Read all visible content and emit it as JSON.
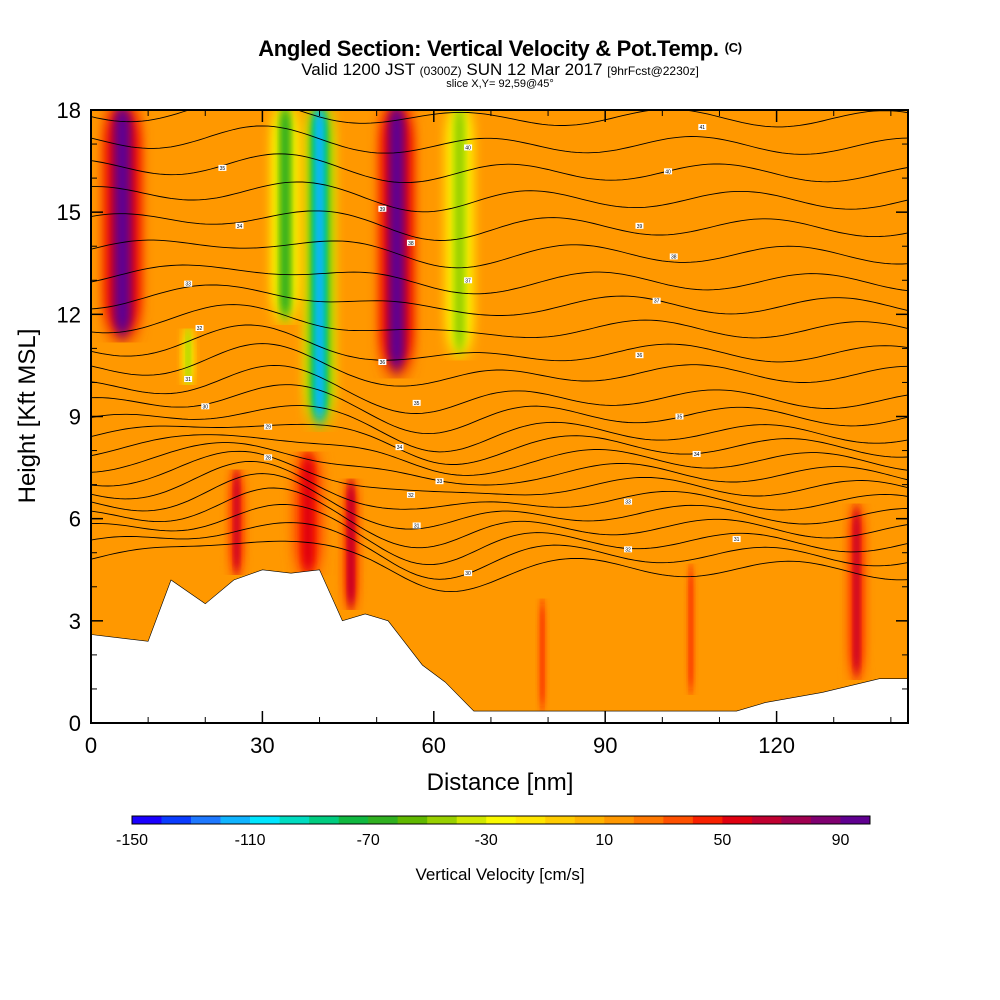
{
  "header": {
    "title": "Angled Section: Vertical Velocity & Pot.Temp.",
    "title_unit": "(C)",
    "valid_prefix": "Valid 1200 JST",
    "valid_utc": "(0300Z)",
    "valid_date": "SUN 12 Mar 2017",
    "forecast": "[9hrFcst@2230z]",
    "slice": "slice X,Y= 92,59@45°"
  },
  "chart_data": {
    "type": "heatmap",
    "xlabel": "Distance [nm]",
    "ylabel": "Height [Kft MSL]",
    "xlim": [
      0,
      143
    ],
    "ylim": [
      0,
      18
    ],
    "x_ticks": [
      0,
      30,
      60,
      90,
      120
    ],
    "y_ticks": [
      0,
      3,
      6,
      9,
      12,
      15,
      18
    ],
    "x_tick_labels": [
      "0",
      "30",
      "60",
      "90",
      "120"
    ],
    "y_tick_labels": [
      "0",
      "3",
      "6",
      "9",
      "12",
      "15",
      "18"
    ],
    "background_level_cm_s": 10,
    "updraft_columns": [
      {
        "x": 5.5,
        "width": 2.2,
        "zmin": 11.5,
        "zmax": 18,
        "peak": 90
      },
      {
        "x": 25.5,
        "width": 0.9,
        "zmin": 4.5,
        "zmax": 7.3,
        "peak": 60
      },
      {
        "x": 38,
        "width": 1.8,
        "zmin": 4.5,
        "zmax": 7.8,
        "peak": 55
      },
      {
        "x": 45.5,
        "width": 0.9,
        "zmin": 3.5,
        "zmax": 7.0,
        "peak": 65
      },
      {
        "x": 53.5,
        "width": 2.0,
        "zmin": 10.5,
        "zmax": 18,
        "peak": 95
      },
      {
        "x": 79,
        "width": 0.5,
        "zmin": 0.5,
        "zmax": 3.5,
        "peak": 40
      },
      {
        "x": 105,
        "width": 0.5,
        "zmin": 1.0,
        "zmax": 4.5,
        "peak": 40
      },
      {
        "x": 134,
        "width": 1.0,
        "zmin": 1.5,
        "zmax": 6.2,
        "peak": 60
      }
    ],
    "downdraft_columns": [
      {
        "x": 40,
        "width": 1.6,
        "zmin": 9.0,
        "zmax": 18,
        "peak": -120
      },
      {
        "x": 34,
        "width": 1.6,
        "zmin": 12,
        "zmax": 18,
        "peak": -65
      },
      {
        "x": 64.5,
        "width": 1.6,
        "zmin": 11,
        "zmax": 18,
        "peak": -45
      },
      {
        "x": 17,
        "width": 0.6,
        "zmin": 10,
        "zmax": 11.5,
        "peak": -50
      }
    ],
    "terrain_ridge_kft": [
      [
        0,
        2.6
      ],
      [
        10,
        2.4
      ],
      [
        14,
        4.2
      ],
      [
        20,
        3.5
      ],
      [
        25,
        4.2
      ],
      [
        30,
        4.5
      ],
      [
        35,
        4.4
      ],
      [
        40,
        4.5
      ],
      [
        44,
        3.0
      ],
      [
        48,
        3.2
      ],
      [
        52,
        3.0
      ],
      [
        58,
        1.7
      ],
      [
        62,
        1.2
      ],
      [
        67,
        0.35
      ],
      [
        90,
        0.35
      ],
      [
        113,
        0.35
      ],
      [
        118,
        0.6
      ],
      [
        128,
        0.9
      ],
      [
        138,
        1.3
      ],
      [
        143,
        1.3
      ]
    ],
    "theta_contour_labels": [
      {
        "x": 23,
        "z": 16.3,
        "text": "35"
      },
      {
        "x": 26,
        "z": 14.6,
        "text": "34"
      },
      {
        "x": 17,
        "z": 12.9,
        "text": "33"
      },
      {
        "x": 19,
        "z": 11.6,
        "text": "32"
      },
      {
        "x": 17,
        "z": 10.1,
        "text": "31"
      },
      {
        "x": 20,
        "z": 9.3,
        "text": "30"
      },
      {
        "x": 31,
        "z": 8.7,
        "text": "29"
      },
      {
        "x": 31,
        "z": 7.8,
        "text": "28"
      },
      {
        "x": 66,
        "z": 16.9,
        "text": "40"
      },
      {
        "x": 51,
        "z": 15.1,
        "text": "39"
      },
      {
        "x": 56,
        "z": 14.1,
        "text": "38"
      },
      {
        "x": 66,
        "z": 13.0,
        "text": "37"
      },
      {
        "x": 51,
        "z": 10.6,
        "text": "36"
      },
      {
        "x": 57,
        "z": 9.4,
        "text": "35"
      },
      {
        "x": 54,
        "z": 8.1,
        "text": "34"
      },
      {
        "x": 61,
        "z": 7.1,
        "text": "33"
      },
      {
        "x": 56,
        "z": 6.7,
        "text": "32"
      },
      {
        "x": 57,
        "z": 5.8,
        "text": "31"
      },
      {
        "x": 66,
        "z": 4.4,
        "text": "30"
      },
      {
        "x": 107,
        "z": 17.5,
        "text": "41"
      },
      {
        "x": 101,
        "z": 16.2,
        "text": "40"
      },
      {
        "x": 96,
        "z": 14.6,
        "text": "39"
      },
      {
        "x": 102,
        "z": 13.7,
        "text": "38"
      },
      {
        "x": 99,
        "z": 12.4,
        "text": "37"
      },
      {
        "x": 96,
        "z": 10.8,
        "text": "36"
      },
      {
        "x": 103,
        "z": 9.0,
        "text": "35"
      },
      {
        "x": 106,
        "z": 7.9,
        "text": "34"
      },
      {
        "x": 94,
        "z": 6.5,
        "text": "33"
      },
      {
        "x": 94,
        "z": 5.1,
        "text": "32"
      },
      {
        "x": 113,
        "z": 5.4,
        "text": "31"
      }
    ]
  },
  "colorbar": {
    "label": "Vertical Velocity [cm/s]",
    "min": -150,
    "max": 100,
    "step": 10,
    "tick_values": [
      -150,
      -110,
      -70,
      -30,
      10,
      50,
      90
    ],
    "tick_labels": [
      "-150",
      "-110",
      "-70",
      "-30",
      "10",
      "50",
      "90"
    ],
    "colors": [
      "#1a00ff",
      "#0a3cff",
      "#1e78ff",
      "#10b4ff",
      "#00e6ff",
      "#00dcc0",
      "#00cc80",
      "#10b840",
      "#30b020",
      "#60b800",
      "#98d000",
      "#d0e800",
      "#fafa00",
      "#ffe600",
      "#ffcc00",
      "#ffb400",
      "#ff9800",
      "#ff7800",
      "#ff5000",
      "#f82000",
      "#e00010",
      "#c00030",
      "#a00050",
      "#800070",
      "#600090"
    ]
  }
}
